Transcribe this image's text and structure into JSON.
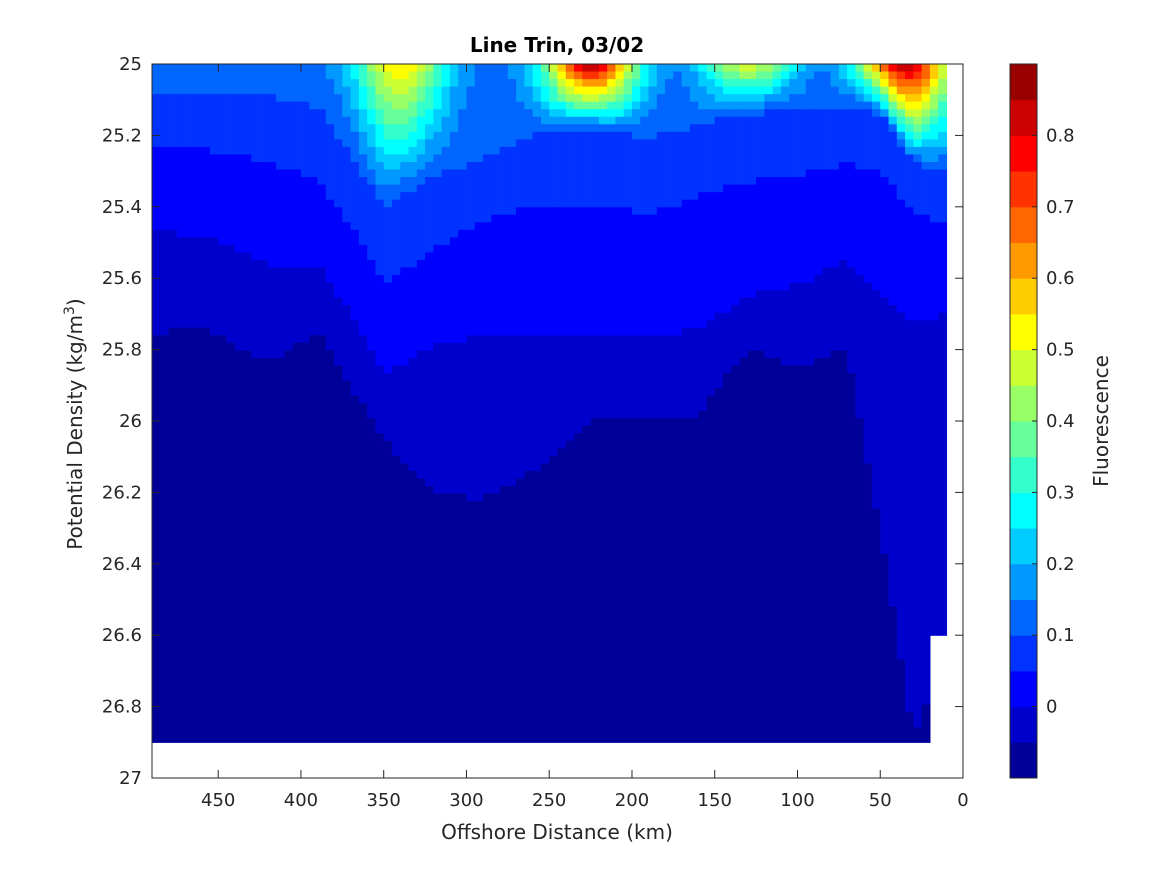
{
  "chart_data": {
    "type": "heatmap",
    "subtype": "filled-contour",
    "title": "Line Trin, 03/02",
    "xlabel": "Offshore Distance (km)",
    "ylabel_main": "Potential Density (kg/m",
    "ylabel_sup": "3",
    "ylabel_end": ")",
    "xlim": [
      490,
      0
    ],
    "x_reversed": true,
    "ylim": [
      25,
      27
    ],
    "y_reversed": true,
    "x_ticks": [
      "450",
      "400",
      "350",
      "300",
      "250",
      "200",
      "150",
      "100",
      "50",
      "0"
    ],
    "x_tick_values": [
      450,
      400,
      350,
      300,
      250,
      200,
      150,
      100,
      50,
      0
    ],
    "y_ticks": [
      "25",
      "25.2",
      "25.4",
      "25.6",
      "25.8",
      "26",
      "26.2",
      "26.4",
      "26.6",
      "26.8",
      "27"
    ],
    "y_tick_values": [
      25,
      25.2,
      25.4,
      25.6,
      25.8,
      26,
      26.2,
      26.4,
      26.6,
      26.8,
      27
    ],
    "colorbar": {
      "label": "Fluorescence",
      "range": [
        -0.1,
        0.9
      ],
      "ticks": [
        "0",
        "0.1",
        "0.2",
        "0.3",
        "0.4",
        "0.5",
        "0.6",
        "0.7",
        "0.8"
      ],
      "tick_values": [
        0,
        0.1,
        0.2,
        0.3,
        0.4,
        0.5,
        0.6,
        0.7,
        0.8
      ],
      "level_step": 0.05,
      "colormap": "jet"
    },
    "data_extent": {
      "x_range_km": [
        490,
        10
      ],
      "deep_limit_density": 26.9,
      "offshore_bottom_limit_density": 26.9,
      "nearshore_bottom_limit_density": 26.6
    },
    "surface_maxima": [
      {
        "x_km": 225,
        "density": 25.0,
        "fluorescence": 0.85
      },
      {
        "x_km": 35,
        "density": 25.02,
        "fluorescence": 0.85
      },
      {
        "x_km": 340,
        "density": 25.05,
        "fluorescence": 0.55
      },
      {
        "x_km": 130,
        "density": 25.05,
        "fluorescence": 0.5
      }
    ],
    "background_level": 0.0,
    "minimum_regions_level": -0.05,
    "columns": [
      {
        "x": 490,
        "c10": 25.08,
        "c05": 25.23,
        "c00": 25.47,
        "cm": 25.76
      },
      {
        "x": 460,
        "c10": 25.08,
        "c05": 25.24,
        "c00": 25.48,
        "cm": 25.73
      },
      {
        "x": 420,
        "c10": 25.09,
        "c05": 25.27,
        "c00": 25.56,
        "cm": 25.84
      },
      {
        "x": 390,
        "c10": 25.12,
        "c05": 25.33,
        "c00": 25.56,
        "cm": 25.75
      },
      {
        "x": 370,
        "c10": 25.25,
        "c05": 25.45,
        "c00": 25.7,
        "cm": 25.9
      },
      {
        "x": 350,
        "c10": 25.4,
        "c05": 25.62,
        "c00": 25.87,
        "cm": 26.05
      },
      {
        "x": 320,
        "c10": 25.32,
        "c05": 25.52,
        "c00": 25.79,
        "cm": 26.2
      },
      {
        "x": 290,
        "c10": 25.26,
        "c05": 25.44,
        "c00": 25.76,
        "cm": 26.22
      },
      {
        "x": 260,
        "c10": 25.2,
        "c05": 25.4,
        "c00": 25.76,
        "cm": 26.14
      },
      {
        "x": 225,
        "c10": 25.18,
        "c05": 25.39,
        "c00": 25.77,
        "cm": 26.0
      },
      {
        "x": 190,
        "c10": 25.21,
        "c05": 25.42,
        "c00": 25.77,
        "cm": 26.0
      },
      {
        "x": 160,
        "c10": 25.17,
        "c05": 25.37,
        "c00": 25.74,
        "cm": 25.98
      },
      {
        "x": 130,
        "c10": 25.14,
        "c05": 25.33,
        "c00": 25.65,
        "cm": 25.8
      },
      {
        "x": 100,
        "c10": 25.13,
        "c05": 25.31,
        "c00": 25.62,
        "cm": 25.85
      },
      {
        "x": 70,
        "c10": 25.12,
        "c05": 25.28,
        "c00": 25.55,
        "cm": 25.8
      },
      {
        "x": 50,
        "c10": 25.14,
        "c05": 25.3,
        "c00": 25.64,
        "cm": 26.3
      },
      {
        "x": 30,
        "c10": 25.28,
        "c05": 25.42,
        "c00": 25.72,
        "cm": 26.9
      },
      {
        "x": 10,
        "c10": 25.3,
        "c05": 25.45,
        "c00": 25.7,
        "cm": 26.6
      }
    ]
  }
}
